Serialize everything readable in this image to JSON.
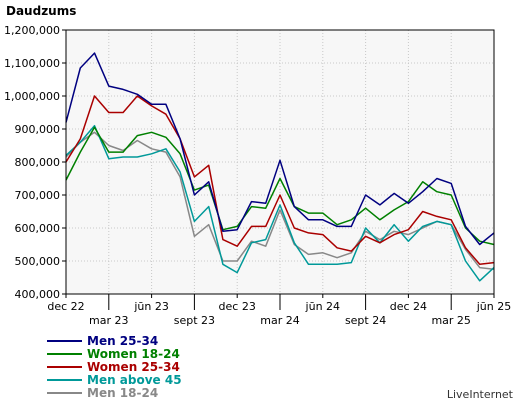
{
  "chart_data": {
    "type": "line",
    "title": "Daudzums",
    "ylim": [
      400000,
      1200000
    ],
    "y_ticks": [
      "400,000",
      "500,000",
      "600,000",
      "700,000",
      "800,000",
      "900,000",
      "1,000,000",
      "1,100,000",
      "1,200,000"
    ],
    "y_tick_values": [
      400000,
      500000,
      600000,
      700000,
      800000,
      900000,
      1000000,
      1100000,
      1200000
    ],
    "x_tick_labels": [
      {
        "label": "dec 22",
        "index": 0,
        "row": 1
      },
      {
        "label": "mar 23",
        "index": 3,
        "row": 2
      },
      {
        "label": "jūn 23",
        "index": 6,
        "row": 1
      },
      {
        "label": "sept 23",
        "index": 9,
        "row": 2
      },
      {
        "label": "dec 23",
        "index": 12,
        "row": 1
      },
      {
        "label": "mar 24",
        "index": 15,
        "row": 2
      },
      {
        "label": "jūn 24",
        "index": 18,
        "row": 1
      },
      {
        "label": "sept 24",
        "index": 21,
        "row": 2
      },
      {
        "label": "dec 24",
        "index": 24,
        "row": 1
      },
      {
        "label": "mar 25",
        "index": 27,
        "row": 2
      },
      {
        "label": "jūn 25",
        "index": 30,
        "row": 1
      }
    ],
    "x_count": 31,
    "grid": true,
    "legend_position": "bottom-left",
    "series": [
      {
        "name": "Men 25-34",
        "color": "#000080",
        "values": [
          920000,
          1085000,
          1130000,
          1030000,
          1020000,
          1005000,
          975000,
          975000,
          870000,
          700000,
          740000,
          590000,
          595000,
          680000,
          675000,
          805000,
          665000,
          625000,
          625000,
          605000,
          605000,
          700000,
          670000,
          705000,
          675000,
          710000,
          750000,
          735000,
          605000,
          550000,
          585000
        ]
      },
      {
        "name": "Women 18-24",
        "color": "#008000",
        "values": [
          745000,
          830000,
          905000,
          830000,
          830000,
          880000,
          890000,
          875000,
          825000,
          715000,
          730000,
          595000,
          605000,
          665000,
          660000,
          750000,
          665000,
          645000,
          645000,
          610000,
          625000,
          660000,
          625000,
          655000,
          680000,
          740000,
          710000,
          700000,
          600000,
          560000,
          550000
        ]
      },
      {
        "name": "Women 25-34",
        "color": "#aa0000",
        "values": [
          800000,
          870000,
          1000000,
          950000,
          950000,
          1000000,
          970000,
          945000,
          870000,
          755000,
          790000,
          565000,
          545000,
          605000,
          605000,
          700000,
          600000,
          585000,
          580000,
          540000,
          530000,
          575000,
          555000,
          580000,
          595000,
          650000,
          635000,
          625000,
          540000,
          490000,
          495000
        ]
      },
      {
        "name": "Men above 45",
        "color": "#009999",
        "values": [
          820000,
          860000,
          910000,
          810000,
          815000,
          815000,
          825000,
          840000,
          770000,
          620000,
          665000,
          490000,
          465000,
          555000,
          565000,
          670000,
          555000,
          490000,
          490000,
          490000,
          495000,
          600000,
          555000,
          610000,
          560000,
          605000,
          620000,
          610000,
          500000,
          440000,
          480000
        ]
      },
      {
        "name": "Men 18-24",
        "color": "#888888",
        "values": [
          815000,
          860000,
          890000,
          850000,
          835000,
          865000,
          840000,
          830000,
          755000,
          575000,
          610000,
          500000,
          500000,
          560000,
          545000,
          655000,
          550000,
          520000,
          525000,
          510000,
          525000,
          590000,
          565000,
          590000,
          580000,
          600000,
          620000,
          610000,
          535000,
          480000,
          475000
        ]
      }
    ]
  },
  "brand": "LiveInternet"
}
